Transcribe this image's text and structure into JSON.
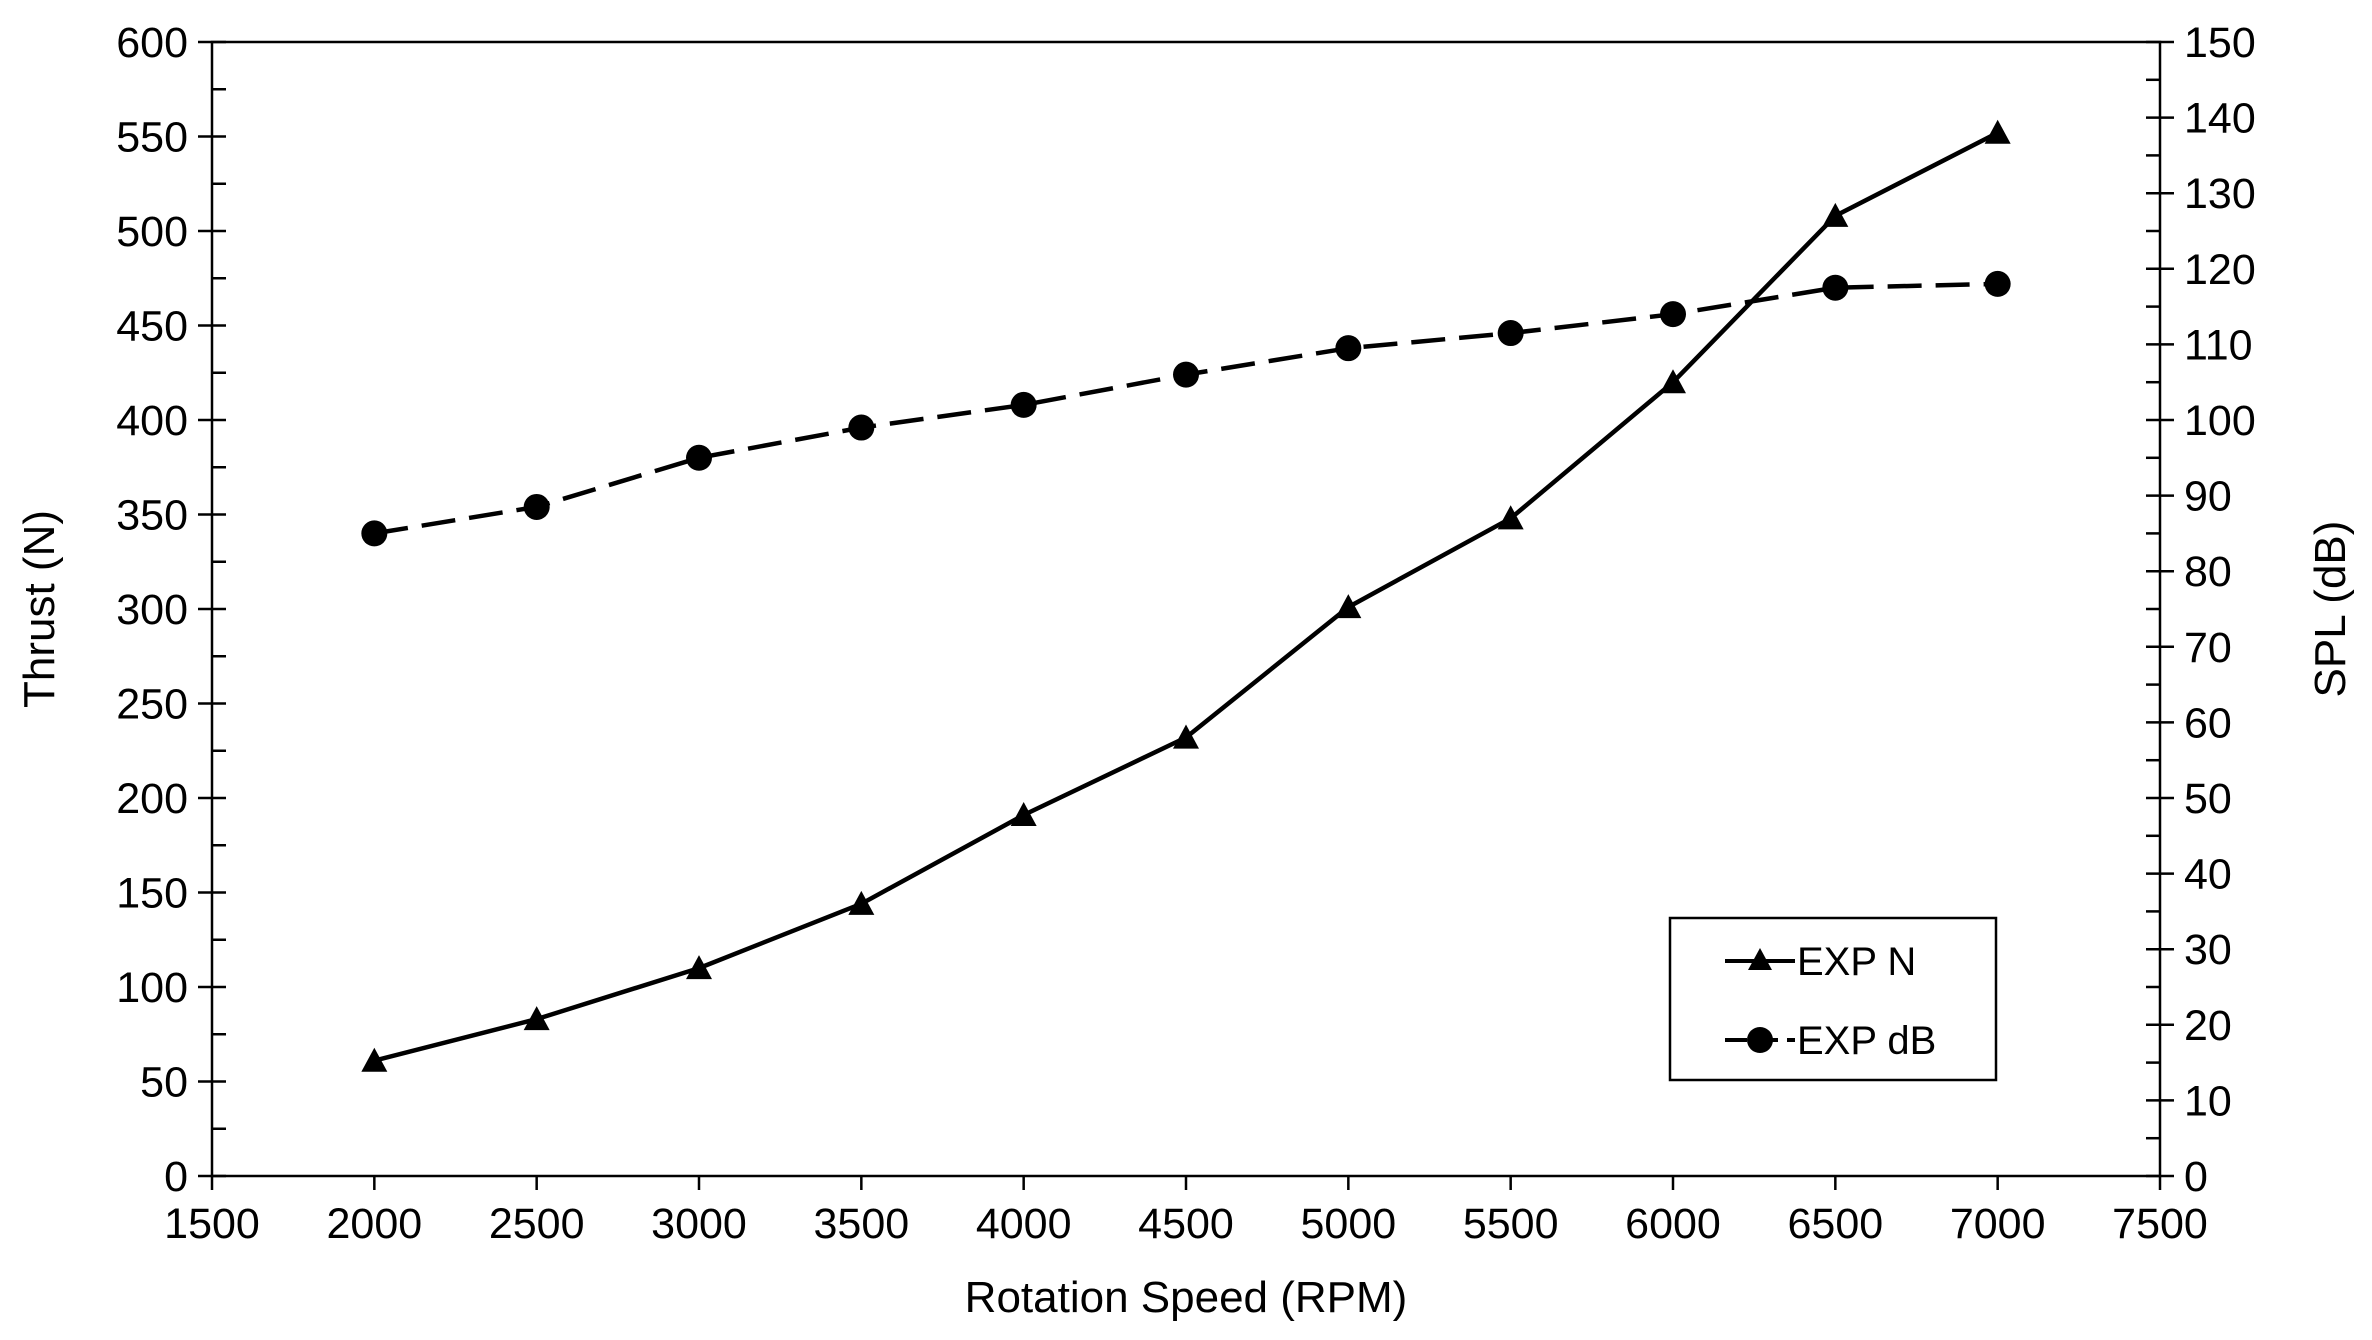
{
  "chart_data": {
    "type": "line",
    "title": "",
    "xlabel": "Rotation Speed (RPM)",
    "ylabel": "Thrust (N)",
    "y2label": "SPL (dB)",
    "xlim": [
      1500,
      7500
    ],
    "ylim": [
      0,
      600
    ],
    "y2lim": [
      0,
      150
    ],
    "x_ticks": [
      "1500",
      "2000",
      "2500",
      "3000",
      "3500",
      "4000",
      "4500",
      "5000",
      "5500",
      "6000",
      "6500",
      "7000",
      "7500"
    ],
    "y_ticks": [
      "0",
      "50",
      "100",
      "150",
      "200",
      "250",
      "300",
      "350",
      "400",
      "450",
      "500",
      "550",
      "600"
    ],
    "y2_ticks": [
      "0",
      "10",
      "20",
      "30",
      "40",
      "50",
      "60",
      "70",
      "80",
      "90",
      "100",
      "110",
      "120",
      "130",
      "140",
      "150"
    ],
    "grid": false,
    "legend_position": "bottom-right",
    "x": [
      2000,
      2500,
      3000,
      3500,
      4000,
      4500,
      5000,
      5500,
      6000,
      6500,
      7000
    ],
    "series": [
      {
        "name": "EXP N",
        "axis": "left",
        "marker": "triangle",
        "line_style": "solid",
        "color": "#000000",
        "values": [
          61,
          83,
          110,
          144,
          191,
          232,
          301,
          348,
          420,
          508,
          552
        ]
      },
      {
        "name": "EXP dB",
        "axis": "right",
        "marker": "circle",
        "line_style": "dashed",
        "color": "#000000",
        "values": [
          85,
          88.5,
          95,
          99,
          102,
          106,
          109.5,
          111.5,
          114,
          117.5,
          118
        ]
      }
    ]
  }
}
